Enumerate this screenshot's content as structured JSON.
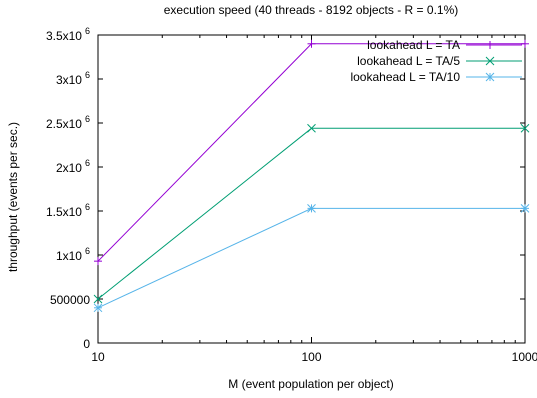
{
  "chart_data": {
    "type": "line",
    "title": "execution speed (40 threads - 8192 objects - R = 0.1%)",
    "xlabel": "M (event population per object)",
    "ylabel": "throughput (events per sec.)",
    "x_scale": "log",
    "x": [
      10,
      100,
      1000
    ],
    "xlim": [
      10,
      1000
    ],
    "ylim": [
      0,
      3500000
    ],
    "x_ticks": [
      {
        "value": 10,
        "label": "10"
      },
      {
        "value": 100,
        "label": "100"
      },
      {
        "value": 1000,
        "label": "1000"
      }
    ],
    "y_ticks": [
      {
        "value": 0,
        "base": "0",
        "exp": ""
      },
      {
        "value": 500000,
        "base": "500000",
        "exp": ""
      },
      {
        "value": 1000000,
        "base": "1x10",
        "exp": "6"
      },
      {
        "value": 1500000,
        "base": "1.5x10",
        "exp": "6"
      },
      {
        "value": 2000000,
        "base": "2x10",
        "exp": "6"
      },
      {
        "value": 2500000,
        "base": "2.5x10",
        "exp": "6"
      },
      {
        "value": 3000000,
        "base": "3x10",
        "exp": "6"
      },
      {
        "value": 3500000,
        "base": "3.5x10",
        "exp": "6"
      }
    ],
    "grid": false,
    "legend_position": "top-right",
    "series": [
      {
        "name": "lookahead L = TA",
        "color": "#9400d3",
        "marker": "plus",
        "values": [
          930000,
          3400000,
          3400000
        ]
      },
      {
        "name": "lookahead L = TA/5",
        "color": "#009e73",
        "marker": "cross",
        "values": [
          500000,
          2440000,
          2440000
        ]
      },
      {
        "name": "lookahead L = TA/10",
        "color": "#56b4e9",
        "marker": "star",
        "values": [
          400000,
          1530000,
          1530000
        ]
      }
    ]
  }
}
